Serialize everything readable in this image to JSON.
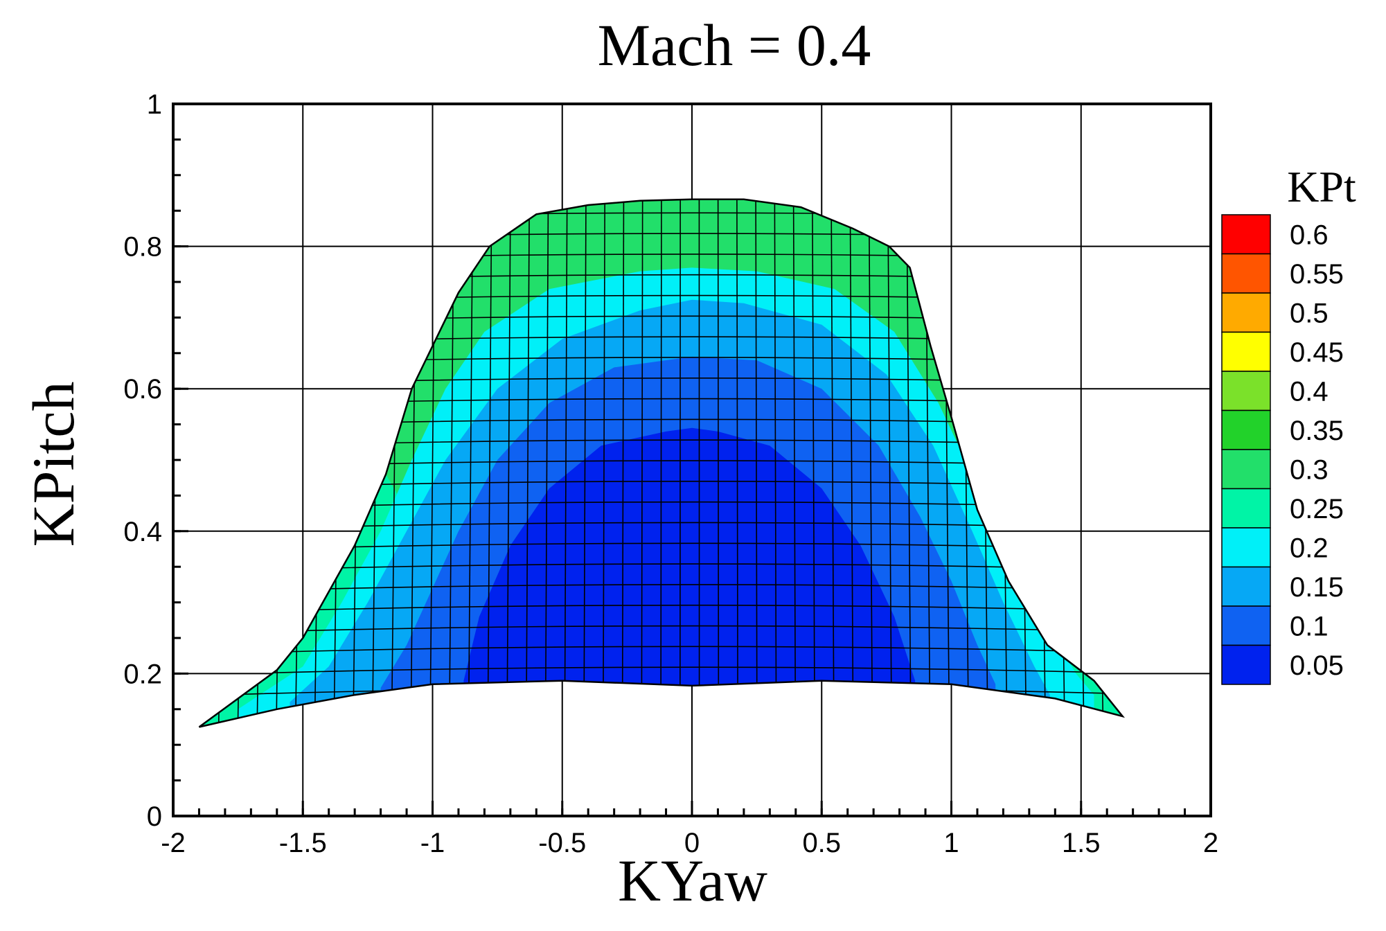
{
  "chart_data": {
    "type": "heatmap",
    "title": "Mach = 0.4",
    "xlabel": "KYaw",
    "ylabel": "KPitch",
    "xlim": [
      -2,
      2
    ],
    "ylim": [
      0,
      1
    ],
    "x_ticks": [
      "-2",
      "-1.5",
      "-1",
      "-0.5",
      "0",
      "0.5",
      "1",
      "1.5",
      "2"
    ],
    "y_ticks": [
      "0",
      "0.2",
      "0.4",
      "0.6",
      "0.8",
      "1"
    ],
    "x_tick_values": [
      -2,
      -1.5,
      -1,
      -0.5,
      0,
      0.5,
      1,
      1.5,
      2
    ],
    "y_tick_values": [
      0,
      0.2,
      0.4,
      0.6,
      0.8,
      1
    ],
    "grid": true,
    "colorbar": {
      "title": "KPt",
      "placement": "right",
      "levels": [
        "0.05",
        "0.1",
        "0.15",
        "0.2",
        "0.25",
        "0.3",
        "0.35",
        "0.4",
        "0.45",
        "0.5",
        "0.55",
        "0.6"
      ],
      "colors": [
        "#0022ee",
        "#0f62f2",
        "#06a8f5",
        "#00f0f8",
        "#00f4a6",
        "#22df6a",
        "#22d22a",
        "#7be12a",
        "#ffff00",
        "#ffaa00",
        "#ff5500",
        "#ff0000"
      ]
    },
    "surface": {
      "boundary_top": [
        [
          -1.9,
          0.125
        ],
        [
          -1.6,
          0.205
        ],
        [
          -1.5,
          0.25
        ],
        [
          -1.3,
          0.38
        ],
        [
          -1.18,
          0.48
        ],
        [
          -1.08,
          0.6
        ],
        [
          -1.0,
          0.66
        ],
        [
          -0.9,
          0.735
        ],
        [
          -0.78,
          0.8
        ],
        [
          -0.6,
          0.845
        ],
        [
          -0.4,
          0.858
        ],
        [
          -0.2,
          0.864
        ],
        [
          0.0,
          0.866
        ],
        [
          0.2,
          0.866
        ],
        [
          0.42,
          0.855
        ],
        [
          0.62,
          0.825
        ],
        [
          0.76,
          0.8
        ],
        [
          0.84,
          0.77
        ],
        [
          0.92,
          0.66
        ],
        [
          1.0,
          0.56
        ],
        [
          1.1,
          0.43
        ],
        [
          1.22,
          0.33
        ],
        [
          1.37,
          0.24
        ],
        [
          1.55,
          0.19
        ],
        [
          1.66,
          0.14
        ]
      ],
      "boundary_bottom": [
        [
          1.66,
          0.14
        ],
        [
          1.4,
          0.165
        ],
        [
          1.0,
          0.185
        ],
        [
          0.5,
          0.19
        ],
        [
          0.0,
          0.183
        ],
        [
          -0.5,
          0.19
        ],
        [
          -1.0,
          0.185
        ],
        [
          -1.3,
          0.17
        ],
        [
          -1.6,
          0.15
        ],
        [
          -1.9,
          0.125
        ]
      ],
      "contours": [
        {
          "level": "0.2",
          "points": [
            [
              -1.75,
              0.15
            ],
            [
              -1.5,
              0.21
            ],
            [
              -1.35,
              0.3
            ],
            [
              -1.2,
              0.4
            ],
            [
              -1.08,
              0.5
            ],
            [
              -0.95,
              0.6
            ],
            [
              -0.8,
              0.68
            ],
            [
              -0.55,
              0.74
            ],
            [
              -0.2,
              0.765
            ],
            [
              0.0,
              0.77
            ],
            [
              0.25,
              0.765
            ],
            [
              0.55,
              0.74
            ],
            [
              0.78,
              0.68
            ],
            [
              0.95,
              0.58
            ],
            [
              1.08,
              0.48
            ],
            [
              1.2,
              0.38
            ],
            [
              1.35,
              0.28
            ],
            [
              1.48,
              0.2
            ],
            [
              1.55,
              0.17
            ]
          ]
        },
        {
          "level": "0.15",
          "points": [
            [
              -1.55,
              0.16
            ],
            [
              -1.4,
              0.21
            ],
            [
              -1.25,
              0.3
            ],
            [
              -1.1,
              0.4
            ],
            [
              -0.95,
              0.5
            ],
            [
              -0.75,
              0.6
            ],
            [
              -0.5,
              0.67
            ],
            [
              -0.2,
              0.71
            ],
            [
              0.0,
              0.725
            ],
            [
              0.2,
              0.72
            ],
            [
              0.5,
              0.69
            ],
            [
              0.75,
              0.62
            ],
            [
              0.93,
              0.52
            ],
            [
              1.08,
              0.4
            ],
            [
              1.2,
              0.3
            ],
            [
              1.32,
              0.21
            ],
            [
              1.38,
              0.17
            ]
          ]
        },
        {
          "level": "0.1",
          "points": [
            [
              -1.2,
              0.18
            ],
            [
              -1.1,
              0.24
            ],
            [
              -1.0,
              0.32
            ],
            [
              -0.9,
              0.4
            ],
            [
              -0.75,
              0.5
            ],
            [
              -0.55,
              0.58
            ],
            [
              -0.3,
              0.63
            ],
            [
              0.0,
              0.645
            ],
            [
              0.25,
              0.64
            ],
            [
              0.5,
              0.6
            ],
            [
              0.72,
              0.52
            ],
            [
              0.88,
              0.42
            ],
            [
              1.0,
              0.33
            ],
            [
              1.1,
              0.24
            ],
            [
              1.17,
              0.185
            ]
          ]
        },
        {
          "level": "0.05",
          "points": [
            [
              -0.88,
              0.19
            ],
            [
              -0.82,
              0.28
            ],
            [
              -0.7,
              0.38
            ],
            [
              -0.55,
              0.46
            ],
            [
              -0.35,
              0.52
            ],
            [
              -0.1,
              0.54
            ],
            [
              0.0,
              0.545
            ],
            [
              0.1,
              0.54
            ],
            [
              0.3,
              0.52
            ],
            [
              0.5,
              0.46
            ],
            [
              0.65,
              0.38
            ],
            [
              0.78,
              0.28
            ],
            [
              0.86,
              0.19
            ]
          ]
        }
      ]
    }
  }
}
